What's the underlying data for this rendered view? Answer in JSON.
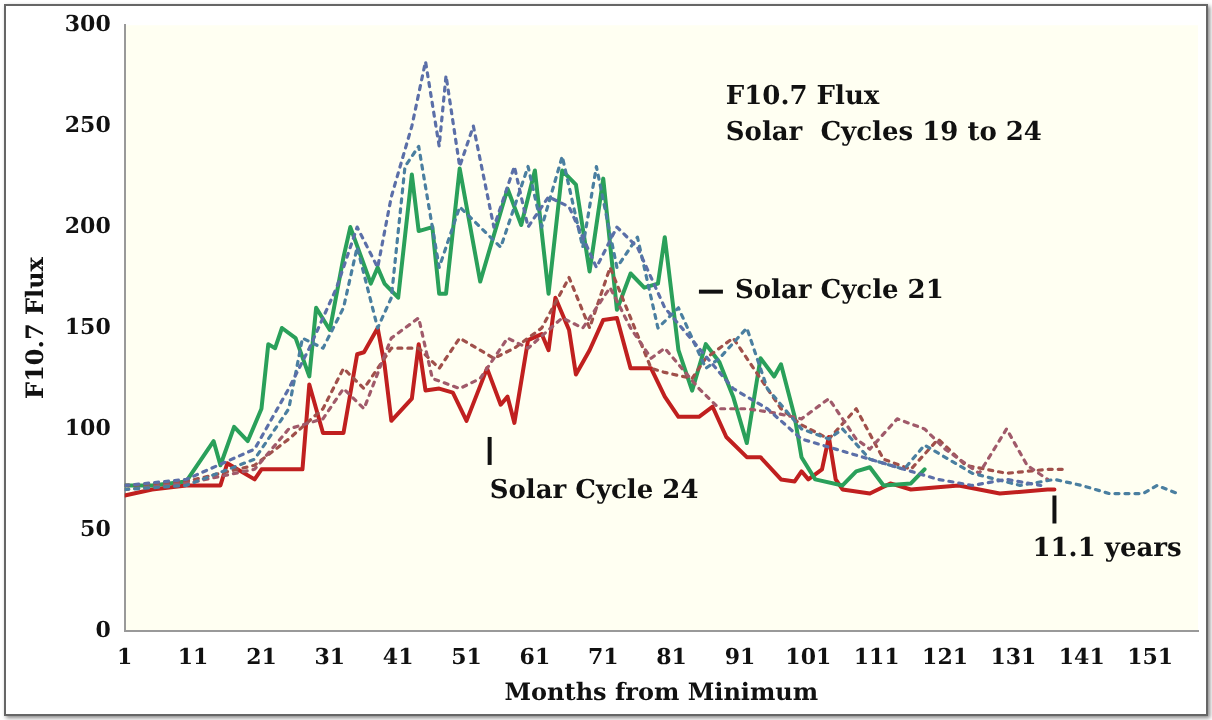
{
  "chart_data": {
    "type": "line",
    "title": "F10.7 Flux",
    "subtitle": "Solar  Cycles 19 to 24",
    "xlabel": "Months from Minimum",
    "ylabel": "F10.7 Flux",
    "xlim": [
      1,
      158
    ],
    "xticks": [
      1,
      11,
      21,
      31,
      41,
      51,
      61,
      71,
      81,
      91,
      101,
      111,
      121,
      131,
      141,
      151
    ],
    "ylim": [
      0,
      300
    ],
    "yticks": [
      0,
      50,
      100,
      150,
      200,
      250,
      300
    ],
    "grid": false,
    "legend": false,
    "marker": "none",
    "series": [
      {
        "color": "#5b6fa8",
        "line_style": "dotted",
        "x": [
          1,
          10,
          20,
          25,
          28,
          32,
          35,
          38,
          40,
          43,
          45,
          47,
          48,
          50,
          52,
          55,
          58,
          60,
          63,
          66,
          70,
          73,
          76,
          80,
          85,
          90,
          95,
          100,
          105,
          110,
          115,
          120,
          125,
          130,
          135
        ],
        "values": [
          72,
          75,
          90,
          120,
          140,
          170,
          200,
          180,
          215,
          250,
          282,
          240,
          275,
          230,
          250,
          200,
          230,
          200,
          215,
          210,
          180,
          200,
          190,
          160,
          140,
          120,
          110,
          95,
          90,
          85,
          80,
          75,
          72,
          75,
          72
        ]
      },
      {
        "color": "#4a7fa0",
        "line_style": "dotted",
        "x": [
          1,
          10,
          20,
          25,
          27,
          30,
          33,
          35,
          38,
          40,
          42,
          44,
          47,
          50,
          53,
          56,
          60,
          62,
          65,
          68,
          70,
          73,
          76,
          79,
          82,
          86,
          88,
          92,
          95,
          100,
          104,
          106,
          110,
          115,
          118,
          125,
          132,
          137,
          141,
          145,
          150,
          152,
          155
        ],
        "values": [
          70,
          72,
          85,
          110,
          145,
          140,
          160,
          190,
          150,
          165,
          230,
          240,
          180,
          210,
          200,
          190,
          230,
          200,
          235,
          190,
          230,
          180,
          195,
          150,
          160,
          130,
          135,
          150,
          120,
          100,
          95,
          100,
          85,
          80,
          92,
          78,
          72,
          75,
          72,
          68,
          68,
          72,
          68
        ]
      },
      {
        "color": "#a05a6a",
        "line_style": "dotted",
        "x": [
          1,
          10,
          20,
          25,
          30,
          33,
          36,
          40,
          44,
          46,
          50,
          53,
          57,
          60,
          65,
          68,
          72,
          75,
          78,
          80,
          85,
          88,
          92,
          96,
          100,
          104,
          108,
          110,
          114,
          118,
          121,
          126,
          130,
          133,
          136
        ],
        "values": [
          70,
          73,
          80,
          100,
          105,
          120,
          110,
          145,
          155,
          125,
          120,
          125,
          145,
          140,
          155,
          150,
          170,
          150,
          135,
          140,
          120,
          110,
          110,
          108,
          105,
          115,
          95,
          90,
          105,
          100,
          90,
          78,
          100,
          82,
          75
        ]
      },
      {
        "color": "#a0504a",
        "line_style": "dotted",
        "x": [
          1,
          10,
          20,
          25,
          30,
          33,
          36,
          40,
          44,
          47,
          50,
          55,
          58,
          62,
          66,
          69,
          72,
          75,
          78,
          80,
          84,
          86,
          90,
          94,
          97,
          100,
          104,
          108,
          112,
          116,
          120,
          124,
          130,
          136,
          139
        ],
        "values": [
          72,
          74,
          82,
          95,
          110,
          130,
          120,
          140,
          140,
          130,
          145,
          135,
          140,
          150,
          175,
          150,
          180,
          155,
          130,
          128,
          125,
          135,
          145,
          125,
          110,
          102,
          95,
          110,
          85,
          80,
          95,
          82,
          78,
          80,
          80
        ]
      },
      {
        "color": "#2aa05a",
        "line_style": "solid",
        "x": [
          1,
          5,
          10,
          14,
          15,
          17,
          19,
          21,
          22,
          23,
          24,
          26,
          28,
          29,
          31,
          33,
          34,
          37,
          38,
          39,
          41,
          43,
          44,
          46,
          47,
          48,
          50,
          53,
          57,
          59,
          61,
          63,
          65,
          67,
          69,
          71,
          73,
          75,
          77,
          79,
          80,
          82,
          84,
          86,
          88,
          90,
          92,
          94,
          96,
          97,
          99,
          100,
          102,
          106,
          108,
          110,
          112,
          116,
          118
        ],
        "values": [
          72,
          72,
          74,
          94,
          82,
          101,
          94,
          110,
          142,
          140,
          150,
          145,
          126,
          160,
          149,
          185,
          200,
          172,
          180,
          172,
          165,
          226,
          198,
          200,
          167,
          167,
          229,
          173,
          219,
          201,
          228,
          167,
          228,
          221,
          178,
          224,
          159,
          177,
          170,
          172,
          195,
          139,
          119,
          142,
          133,
          116,
          93,
          135,
          126,
          132,
          106,
          86,
          75,
          72,
          79,
          81,
          72,
          73,
          80
        ]
      },
      {
        "color": "#c0201f",
        "line_style": "solid",
        "x": [
          1,
          5,
          10,
          15,
          16,
          20,
          21,
          27,
          28,
          30,
          33,
          35,
          36,
          38,
          39,
          40,
          43,
          44,
          45,
          47,
          49,
          51,
          54,
          56,
          57,
          58,
          60,
          62,
          63,
          64,
          66,
          67,
          69,
          71,
          73,
          75,
          78,
          80,
          82,
          85,
          87,
          89,
          92,
          94,
          97,
          99,
          100,
          101,
          103,
          104,
          105,
          106,
          110,
          113,
          116,
          123,
          129,
          136,
          137
        ],
        "values": [
          67,
          70,
          72,
          72,
          83,
          75,
          80,
          80,
          122,
          98,
          98,
          137,
          138,
          150,
          132,
          104,
          115,
          142,
          119,
          120,
          118,
          104,
          130,
          112,
          116,
          103,
          144,
          147,
          139,
          165,
          149,
          127,
          139,
          154,
          155,
          130,
          130,
          116,
          106,
          106,
          111,
          96,
          86,
          86,
          75,
          74,
          79,
          75,
          80,
          96,
          75,
          70,
          68,
          73,
          70,
          72,
          68,
          70,
          70
        ]
      }
    ],
    "annotations": [
      "Solar Cycle 21",
      "Solar Cycle 24",
      {
        "text": "11.1 years",
        "x": 137,
        "y": 70
      }
    ]
  }
}
